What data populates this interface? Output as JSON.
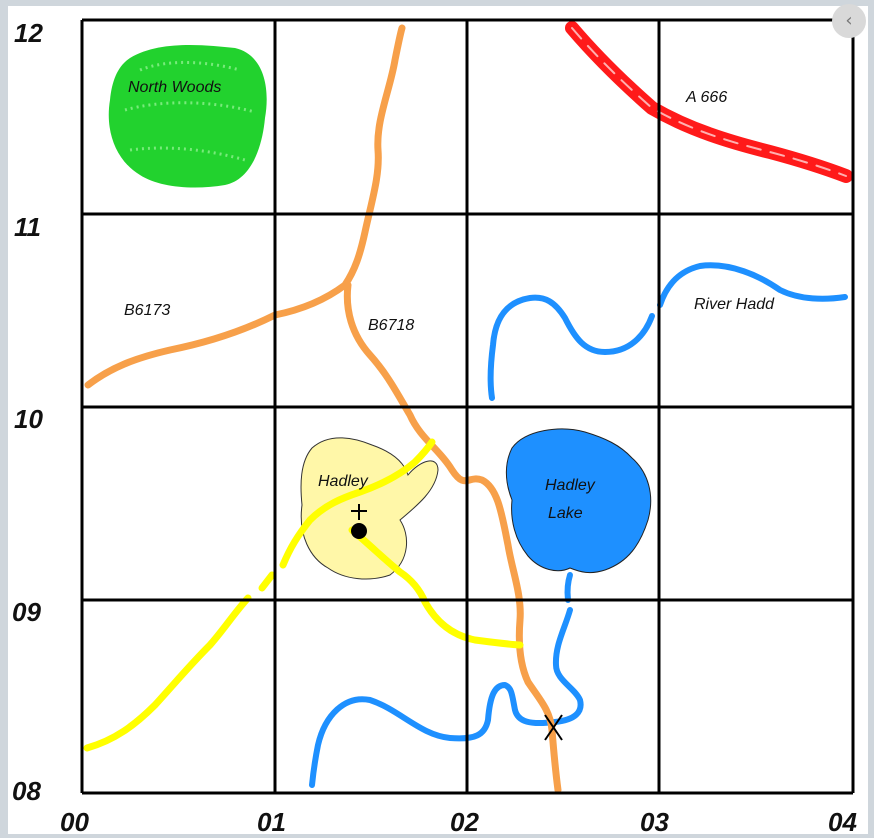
{
  "map": {
    "features": {
      "north_woods": "North Woods",
      "road_a": "A 666",
      "road_b6173": "B6173",
      "road_b6718": "B6718",
      "river": "River Hadd",
      "village": "Hadley",
      "lake_line1": "Hadley",
      "lake_line2": "Lake"
    },
    "grid": {
      "eastings": [
        "00",
        "01",
        "02",
        "03",
        "04"
      ],
      "northings": [
        "12",
        "11",
        "10",
        "09",
        "08"
      ]
    },
    "colors": {
      "road_a": "#ff1a1a",
      "road_b": "#f7a04a",
      "minor_road": "#ffff00",
      "water": "#1e90ff",
      "woods": "#22d22e",
      "village": "#fff7a8",
      "grid": "#000000"
    }
  },
  "ui": {
    "close_icon": "close-icon",
    "close_glyph": "‹"
  }
}
